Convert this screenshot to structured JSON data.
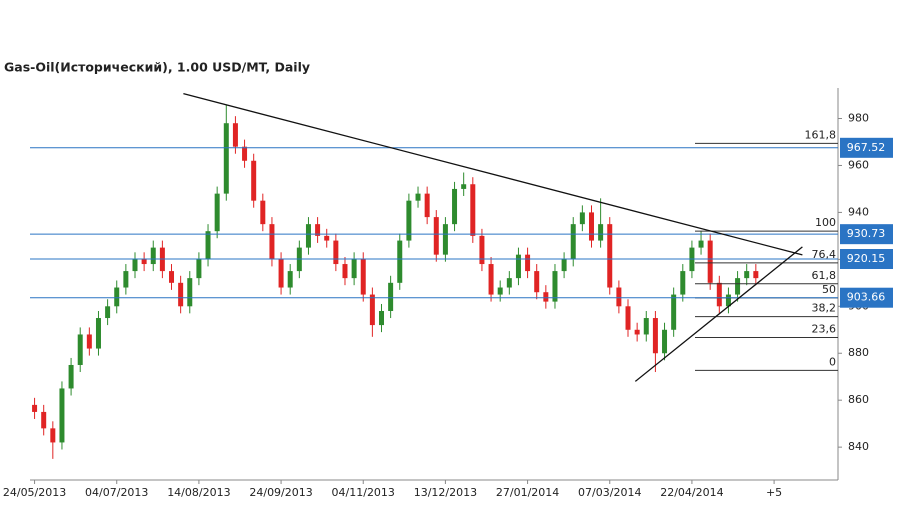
{
  "chart_data": {
    "type": "candlestick",
    "title": "Gas-Oil(Исторический), 1.00 USD/MT, Daily",
    "open": [
      858,
      855,
      848,
      842,
      865,
      875,
      888,
      882,
      895,
      900,
      908,
      915,
      920,
      918,
      925,
      915,
      910,
      900,
      912,
      920,
      932,
      948,
      978,
      968,
      962,
      945,
      935,
      920,
      908,
      915,
      925,
      935,
      930,
      928,
      918,
      912,
      920,
      905,
      892,
      898,
      910,
      928,
      945,
      948,
      938,
      922,
      935,
      950,
      952,
      930,
      918,
      905,
      908,
      912,
      922,
      915,
      906,
      902,
      915,
      920,
      935,
      940,
      928,
      935,
      908,
      900,
      890,
      888,
      895,
      880,
      890,
      905,
      915,
      925,
      928,
      910,
      900,
      905,
      912,
      915
    ],
    "high": [
      861,
      858,
      851,
      868,
      878,
      891,
      891,
      898,
      903,
      911,
      918,
      923,
      923,
      928,
      928,
      918,
      913,
      915,
      923,
      935,
      951,
      986,
      981,
      971,
      965,
      948,
      938,
      923,
      918,
      928,
      938,
      938,
      933,
      931,
      921,
      923,
      923,
      908,
      901,
      913,
      931,
      948,
      951,
      951,
      941,
      938,
      953,
      957,
      955,
      933,
      921,
      911,
      915,
      925,
      925,
      918,
      909,
      918,
      923,
      938,
      943,
      943,
      946,
      938,
      911,
      903,
      893,
      898,
      898,
      893,
      908,
      918,
      928,
      932,
      931,
      913,
      908,
      915,
      918,
      918
    ],
    "low": [
      852,
      845,
      835,
      839,
      862,
      872,
      879,
      879,
      892,
      897,
      905,
      912,
      915,
      915,
      912,
      907,
      897,
      897,
      909,
      917,
      929,
      945,
      965,
      959,
      942,
      932,
      917,
      905,
      905,
      912,
      922,
      927,
      925,
      915,
      909,
      909,
      902,
      887,
      889,
      895,
      907,
      925,
      942,
      935,
      919,
      919,
      932,
      947,
      927,
      915,
      902,
      902,
      905,
      909,
      912,
      903,
      899,
      899,
      912,
      917,
      932,
      925,
      925,
      905,
      897,
      887,
      885,
      885,
      872,
      877,
      887,
      902,
      912,
      922,
      907,
      897,
      897,
      902,
      909,
      909
    ],
    "close": [
      855,
      848,
      842,
      865,
      875,
      888,
      882,
      895,
      900,
      908,
      915,
      920,
      918,
      925,
      915,
      910,
      900,
      912,
      920,
      932,
      948,
      978,
      968,
      962,
      945,
      935,
      920,
      908,
      915,
      925,
      935,
      930,
      928,
      918,
      912,
      920,
      905,
      892,
      898,
      910,
      928,
      945,
      948,
      938,
      922,
      935,
      950,
      952,
      930,
      918,
      905,
      908,
      912,
      922,
      915,
      906,
      902,
      915,
      920,
      935,
      940,
      928,
      935,
      908,
      900,
      890,
      888,
      895,
      880,
      890,
      905,
      915,
      925,
      928,
      910,
      900,
      905,
      912,
      915,
      912
    ],
    "up_color": "#2e8b2e",
    "down_color": "#e02424",
    "xlim": [
      -0.5,
      88
    ],
    "xticks": [
      {
        "value": 0,
        "label": "24/05/2013"
      },
      {
        "value": 9,
        "label": "04/07/2013"
      },
      {
        "value": 18,
        "label": "14/08/2013"
      },
      {
        "value": 27,
        "label": "24/09/2013"
      },
      {
        "value": 36,
        "label": "04/11/2013"
      },
      {
        "value": 45,
        "label": "13/12/2013"
      },
      {
        "value": 54,
        "label": "27/01/2014"
      },
      {
        "value": 63,
        "label": "07/03/2014"
      },
      {
        "value": 72,
        "label": "22/04/2014"
      },
      {
        "value": 81,
        "label": "+5"
      }
    ],
    "ylim": [
      826,
      993
    ],
    "yticks": [
      840,
      860,
      880,
      900,
      920,
      940,
      960,
      980
    ],
    "levels": [
      967.52,
      930.73,
      920.15,
      903.66
    ],
    "level_color": "#2a74c4",
    "fib_levels": [
      {
        "value": 969.4,
        "label": "161,8"
      },
      {
        "value": 932,
        "label": "100"
      },
      {
        "value": 918.5,
        "label": "76,4"
      },
      {
        "value": 909.6,
        "label": "61,8"
      },
      {
        "value": 903.6,
        "label": "50"
      },
      {
        "value": 895.6,
        "label": "38,2"
      },
      {
        "value": 886.7,
        "label": "23,6"
      },
      {
        "value": 872.7,
        "label": "0"
      }
    ],
    "trendlines": [
      {
        "x": [
          16.3,
          84.1
        ],
        "y": [
          990.6,
          921.9
        ]
      },
      {
        "x": [
          65.8,
          84.1
        ],
        "y": [
          868,
          925.3
        ]
      }
    ]
  }
}
